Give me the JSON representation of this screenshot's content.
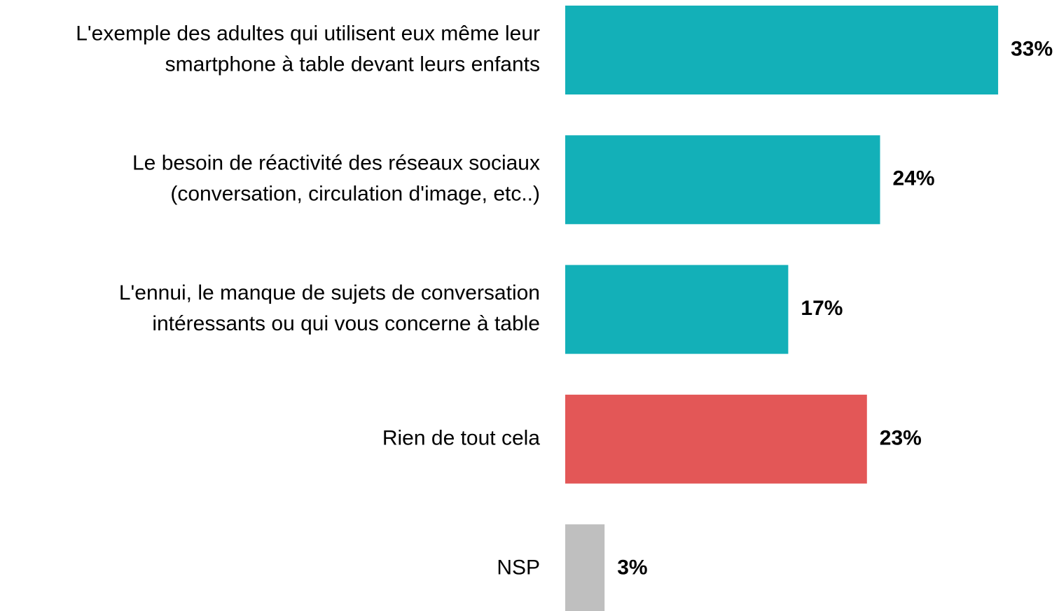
{
  "chart_data": {
    "type": "bar",
    "orientation": "horizontal",
    "categories": [
      [
        "L'exemple des adultes qui utilisent eux même leur",
        "smartphone à table devant leurs enfants"
      ],
      [
        "Le besoin de réactivité des réseaux sociaux",
        "(conversation, circulation d'image, etc..)"
      ],
      [
        "L'ennui, le manque de sujets de conversation",
        "intéressants ou qui vous concerne à table"
      ],
      [
        "Rien de tout cela"
      ],
      [
        "NSP"
      ]
    ],
    "values": [
      33,
      24,
      17,
      23,
      3
    ],
    "value_labels": [
      "33%",
      "24%",
      "17%",
      "23%",
      "3%"
    ],
    "colors": [
      "#13b0b8",
      "#13b0b8",
      "#13b0b8",
      "#e35757",
      "#bfbfbf"
    ]
  }
}
